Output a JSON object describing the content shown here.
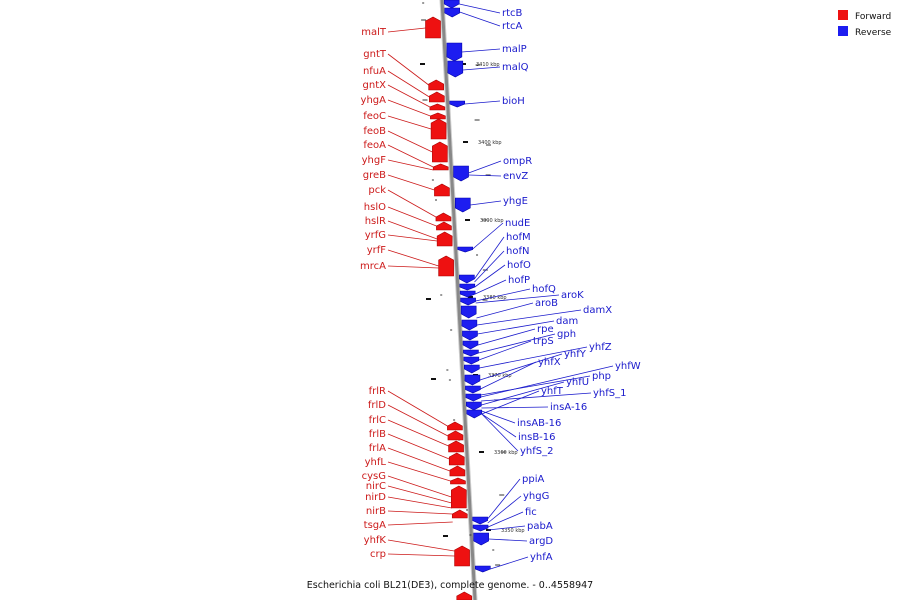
{
  "caption": "Escherichia coli BL21(DE3), complete genome. - 0..4558947",
  "colors": {
    "forward_fill": "#ee1111",
    "forward_stroke": "#aa0000",
    "forward_label": "#cc1a1a",
    "reverse_fill": "#1d1df0",
    "reverse_stroke": "#0000aa",
    "reverse_label": "#1a1acc",
    "backbone": "#888888"
  },
  "legend": [
    {
      "key": "forward",
      "label": "Forward",
      "color": "#ee1111"
    },
    {
      "key": "reverse",
      "label": "Reverse",
      "color": "#1d1df0"
    }
  ],
  "scale_ticks": [
    "3410 kbp",
    "3400 kbp",
    "3390 kbp",
    "3380 kbp",
    "3370 kbp",
    "3360 kbp",
    "3350 kbp"
  ],
  "forward_genes": [
    "malT",
    "gntT",
    "nfuA",
    "gntX",
    "yhgA",
    "feoC",
    "feoB",
    "feoA",
    "yhgF",
    "greB",
    "pck",
    "hslO",
    "hslR",
    "yrfG",
    "yrfF",
    "mrcA",
    "frlR",
    "frlD",
    "frlC",
    "frlB",
    "frlA",
    "yhfL",
    "cysG",
    "nirC",
    "nirD",
    "nirB",
    "tsgA",
    "yhfK",
    "crp"
  ],
  "reverse_genes": [
    "rtcB",
    "rtcA",
    "malP",
    "malQ",
    "bioH",
    "ompR",
    "envZ",
    "yhgE",
    "nudE",
    "hofM",
    "hofN",
    "hofO",
    "hofP",
    "hofQ",
    "aroK",
    "aroB",
    "damX",
    "dam",
    "rpe",
    "gph",
    "trpS",
    "yhfZ",
    "yhfY",
    "yhfX",
    "yhfW",
    "php",
    "yhfU",
    "yhfT",
    "yhfS_1",
    "insA-16",
    "insAB-16",
    "insB-16",
    "yhfS_2",
    "ppiA",
    "yhgG",
    "fic",
    "pabA",
    "argD",
    "yhfA"
  ]
}
